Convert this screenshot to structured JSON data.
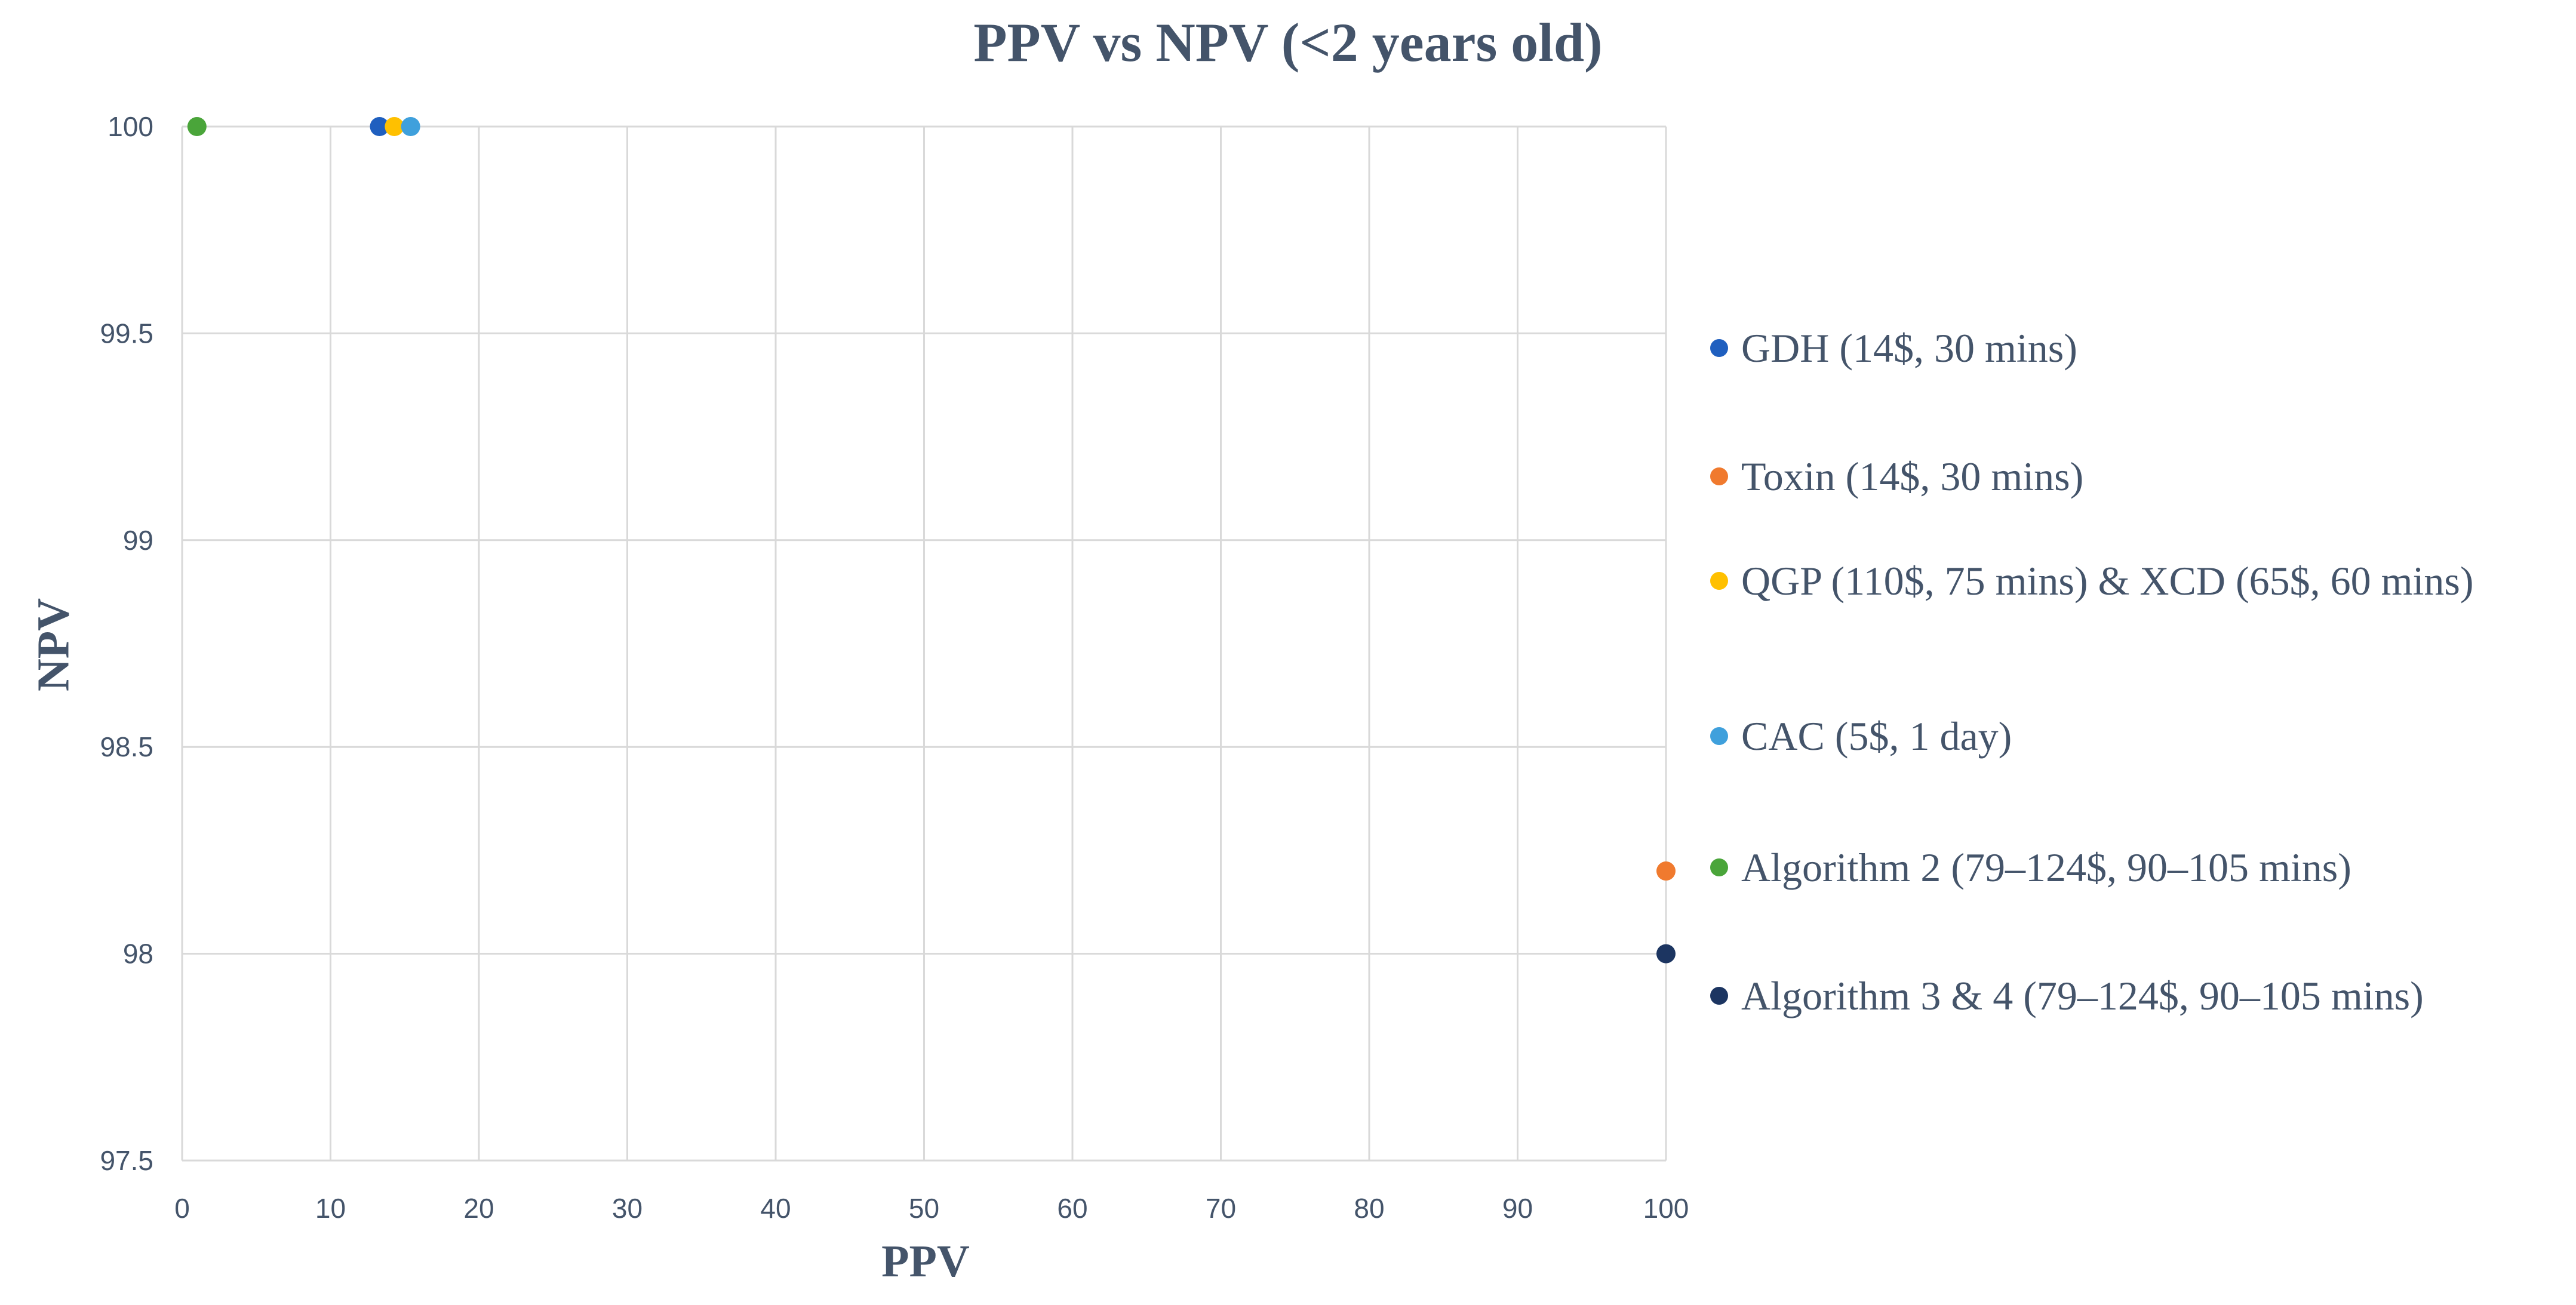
{
  "chart_data": {
    "type": "scatter",
    "title": "PPV vs NPV (<2 years old)",
    "xlabel": "PPV",
    "ylabel": "NPV",
    "xlim": [
      0,
      100
    ],
    "ylim": [
      97.5,
      100
    ],
    "x_ticks": [
      "0",
      "10",
      "20",
      "30",
      "40",
      "50",
      "60",
      "70",
      "80",
      "90",
      "100"
    ],
    "y_ticks": [
      "97.5",
      "98",
      "98.5",
      "99",
      "99.5",
      "100"
    ],
    "grid": true,
    "legend_position": "right",
    "series": [
      {
        "name": "GDH (14$, 30 mins)",
        "color": "#1f5fbf",
        "points": [
          {
            "x": 13.3,
            "y": 100
          }
        ]
      },
      {
        "name": "Toxin (14$, 30 mins)",
        "color": "#f07a2e",
        "points": [
          {
            "x": 100,
            "y": 98.2
          }
        ]
      },
      {
        "name": "QGP (110$, 75 mins) & XCD (65$, 60 mins)",
        "color": "#ffc000",
        "points": [
          {
            "x": 14.3,
            "y": 100
          }
        ]
      },
      {
        "name": "CAC (5$, 1 day)",
        "color": "#3fa0dc",
        "points": [
          {
            "x": 15.4,
            "y": 100
          }
        ]
      },
      {
        "name": "Algorithm 2  (79–124$, 90–105 mins)",
        "color": "#4aa53a",
        "points": [
          {
            "x": 1,
            "y": 100
          }
        ]
      },
      {
        "name": "Algorithm 3 & 4  (79–124$, 90–105 mins)",
        "color": "#1c3561",
        "points": [
          {
            "x": 100,
            "y": 98
          }
        ]
      }
    ]
  }
}
